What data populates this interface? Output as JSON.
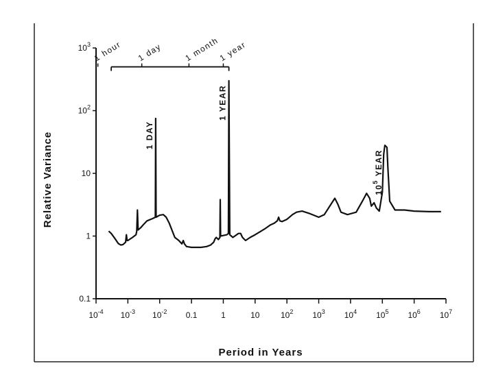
{
  "chart_data": {
    "type": "line",
    "title": "",
    "xlabel": "Period in Years",
    "ylabel": "Relative Variance",
    "xscale": "log",
    "yscale": "log",
    "xlim": [
      0.0001,
      10000000
    ],
    "ylim": [
      0.1,
      1000
    ],
    "grid": false,
    "x_ticks": [
      {
        "value": 0.0001,
        "base": "10",
        "exp": "-4"
      },
      {
        "value": 0.001,
        "base": "10",
        "exp": "-3"
      },
      {
        "value": 0.01,
        "base": "10",
        "exp": "-2"
      },
      {
        "value": 0.1,
        "base": "0.1",
        "exp": ""
      },
      {
        "value": 1,
        "base": "1",
        "exp": ""
      },
      {
        "value": 10,
        "base": "10",
        "exp": ""
      },
      {
        "value": 100,
        "base": "10",
        "exp": "2"
      },
      {
        "value": 1000,
        "base": "10",
        "exp": "3"
      },
      {
        "value": 10000,
        "base": "10",
        "exp": "4"
      },
      {
        "value": 100000,
        "base": "10",
        "exp": "5"
      },
      {
        "value": 1000000,
        "base": "10",
        "exp": "6"
      },
      {
        "value": 10000000,
        "base": "10",
        "exp": "7"
      }
    ],
    "y_ticks": [
      {
        "value": 0.1,
        "base": "0.1",
        "exp": ""
      },
      {
        "value": 1,
        "base": "1",
        "exp": ""
      },
      {
        "value": 10,
        "base": "10",
        "exp": ""
      },
      {
        "value": 100,
        "base": "10",
        "exp": "2"
      },
      {
        "value": 1000,
        "base": "10",
        "exp": "3"
      }
    ],
    "time_scale": {
      "x_start": 0.0003,
      "x_end": 1.5,
      "y": 500,
      "ticks": [
        {
          "value": 0.000114,
          "label": "1 hour"
        },
        {
          "value": 0.00274,
          "label": "1 day"
        },
        {
          "value": 0.0833,
          "label": "1 month"
        },
        {
          "value": 1,
          "label": "1 year"
        }
      ]
    },
    "annotations": [
      {
        "text": "1 DAY",
        "x": 0.0075,
        "y_top": 80
      },
      {
        "text": "1 YEAR",
        "x": 1.5,
        "y_top": 300
      },
      {
        "base": "10",
        "exp": "5",
        "text": " YEAR",
        "x": 120000,
        "y_top": 28
      }
    ],
    "series": [
      {
        "color": "#111111",
        "points": [
          [
            0.00025,
            1.2
          ],
          [
            0.0003,
            1.1
          ],
          [
            0.0004,
            0.9
          ],
          [
            0.0005,
            0.76
          ],
          [
            0.0006,
            0.72
          ],
          [
            0.0007,
            0.73
          ],
          [
            0.00085,
            0.8
          ],
          [
            0.0009,
            1.05
          ],
          [
            0.00095,
            0.85
          ],
          [
            0.001,
            0.85
          ],
          [
            0.0014,
            0.95
          ],
          [
            0.0018,
            1.05
          ],
          [
            0.0019,
            1.2
          ],
          [
            0.002,
            2.6
          ],
          [
            0.0021,
            1.25
          ],
          [
            0.0025,
            1.35
          ],
          [
            0.003,
            1.5
          ],
          [
            0.004,
            1.75
          ],
          [
            0.006,
            1.9
          ],
          [
            0.0073,
            2.0
          ],
          [
            0.0075,
            75
          ],
          [
            0.0077,
            2.0
          ],
          [
            0.01,
            2.15
          ],
          [
            0.013,
            2.2
          ],
          [
            0.016,
            2.0
          ],
          [
            0.02,
            1.6
          ],
          [
            0.025,
            1.2
          ],
          [
            0.03,
            0.95
          ],
          [
            0.04,
            0.85
          ],
          [
            0.05,
            0.75
          ],
          [
            0.055,
            0.85
          ],
          [
            0.06,
            0.75
          ],
          [
            0.07,
            0.68
          ],
          [
            0.1,
            0.66
          ],
          [
            0.2,
            0.66
          ],
          [
            0.3,
            0.68
          ],
          [
            0.4,
            0.72
          ],
          [
            0.5,
            0.8
          ],
          [
            0.55,
            0.9
          ],
          [
            0.6,
            0.95
          ],
          [
            0.7,
            0.88
          ],
          [
            0.78,
            0.95
          ],
          [
            0.8,
            3.8
          ],
          [
            0.82,
            1.0
          ],
          [
            1.0,
            1.02
          ],
          [
            1.3,
            1.05
          ],
          [
            1.45,
            1.1
          ],
          [
            1.5,
            300
          ],
          [
            1.6,
            1.05
          ],
          [
            2.0,
            0.95
          ],
          [
            3.0,
            1.1
          ],
          [
            3.5,
            1.1
          ],
          [
            4.0,
            0.95
          ],
          [
            5.0,
            0.85
          ],
          [
            7.0,
            0.95
          ],
          [
            10,
            1.05
          ],
          [
            20,
            1.3
          ],
          [
            30,
            1.5
          ],
          [
            40,
            1.6
          ],
          [
            50,
            1.75
          ],
          [
            55,
            2.0
          ],
          [
            60,
            1.75
          ],
          [
            70,
            1.7
          ],
          [
            100,
            1.85
          ],
          [
            150,
            2.2
          ],
          [
            200,
            2.4
          ],
          [
            300,
            2.5
          ],
          [
            500,
            2.3
          ],
          [
            1000,
            2.0
          ],
          [
            1500,
            2.2
          ],
          [
            2500,
            3.3
          ],
          [
            3200,
            4.0
          ],
          [
            4000,
            3.2
          ],
          [
            5000,
            2.4
          ],
          [
            8000,
            2.2
          ],
          [
            15000,
            2.4
          ],
          [
            25000,
            3.8
          ],
          [
            32000,
            4.8
          ],
          [
            40000,
            4.0
          ],
          [
            45000,
            3.0
          ],
          [
            55000,
            3.4
          ],
          [
            65000,
            2.8
          ],
          [
            80000,
            2.5
          ],
          [
            100000,
            5.0
          ],
          [
            110000,
            20
          ],
          [
            120000,
            28
          ],
          [
            140000,
            26
          ],
          [
            150000,
            12
          ],
          [
            170000,
            3.6
          ],
          [
            250000,
            2.6
          ],
          [
            500000,
            2.6
          ],
          [
            1000000,
            2.5
          ],
          [
            3000000,
            2.45
          ],
          [
            7000000,
            2.45
          ]
        ]
      }
    ]
  }
}
